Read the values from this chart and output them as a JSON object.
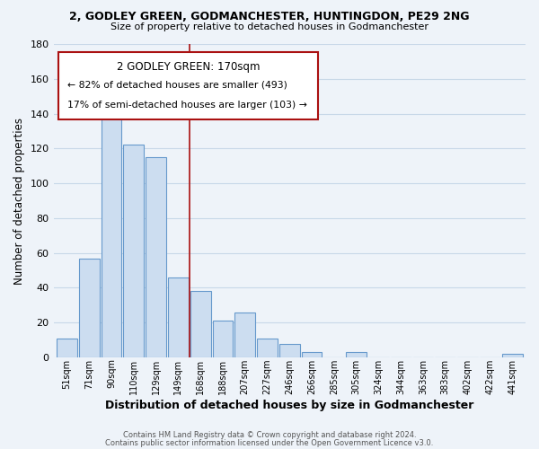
{
  "title_line1": "2, GODLEY GREEN, GODMANCHESTER, HUNTINGDON, PE29 2NG",
  "title_line2": "Size of property relative to detached houses in Godmanchester",
  "xlabel": "Distribution of detached houses by size in Godmanchester",
  "ylabel": "Number of detached properties",
  "bar_labels": [
    "51sqm",
    "71sqm",
    "90sqm",
    "110sqm",
    "129sqm",
    "149sqm",
    "168sqm",
    "188sqm",
    "207sqm",
    "227sqm",
    "246sqm",
    "266sqm",
    "285sqm",
    "305sqm",
    "324sqm",
    "344sqm",
    "363sqm",
    "383sqm",
    "402sqm",
    "422sqm",
    "441sqm"
  ],
  "bar_values": [
    11,
    57,
    140,
    122,
    115,
    46,
    38,
    21,
    26,
    11,
    8,
    3,
    0,
    3,
    0,
    0,
    0,
    0,
    0,
    0,
    2
  ],
  "bar_color": "#ccddf0",
  "bar_edge_color": "#6699cc",
  "ylim": [
    0,
    180
  ],
  "yticks": [
    0,
    20,
    40,
    60,
    80,
    100,
    120,
    140,
    160,
    180
  ],
  "annotation_line1": "2 GODLEY GREEN: 170sqm",
  "annotation_line2": "← 82% of detached houses are smaller (493)",
  "annotation_line3": "17% of semi-detached houses are larger (103) →",
  "vline_index": 6,
  "footer_line1": "Contains HM Land Registry data © Crown copyright and database right 2024.",
  "footer_line2": "Contains public sector information licensed under the Open Government Licence v3.0.",
  "grid_color": "#c8d8e8",
  "background_color": "#eef3f9",
  "red_color": "#aa1111",
  "title_fontsize": 9.0,
  "subtitle_fontsize": 8.0
}
